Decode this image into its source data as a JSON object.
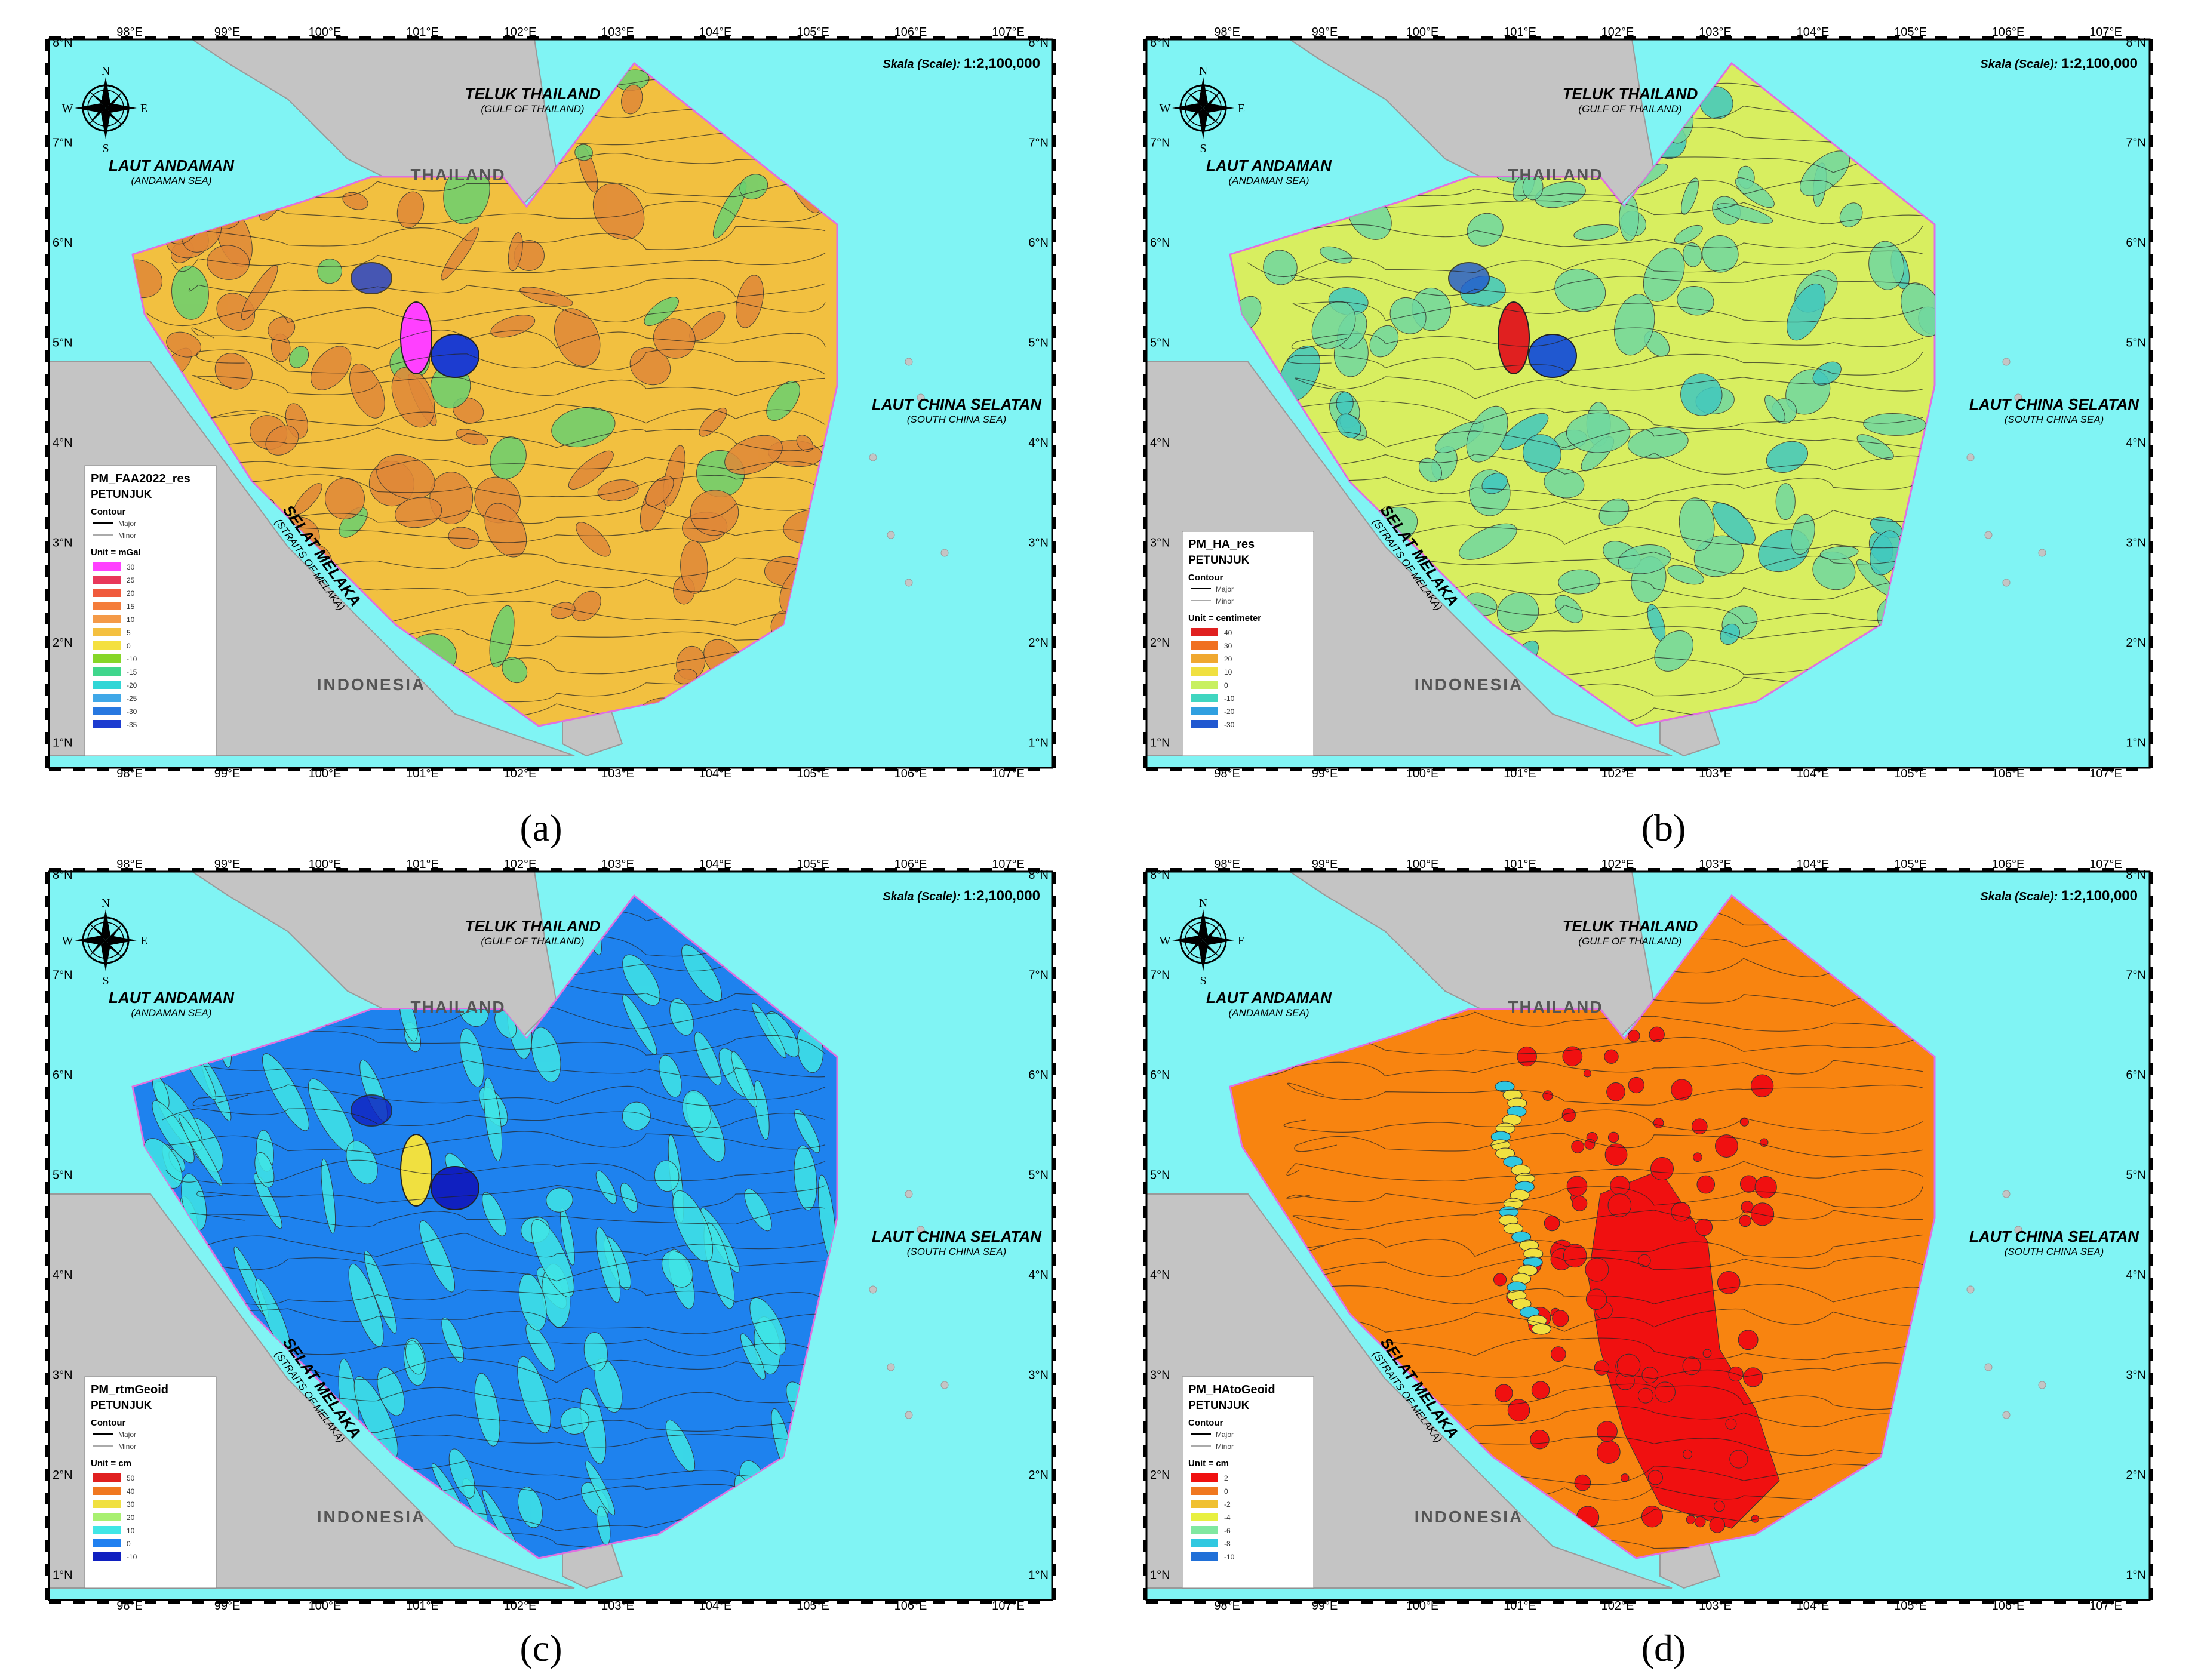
{
  "panels": [
    {
      "caption": "(a)",
      "legend": {
        "title": "PM_FAA2022_res",
        "subtitle": "PETUNJUK",
        "contour": "Contour",
        "major": "Major",
        "minor": "Minor",
        "unit": "Unit = mGal",
        "classes": [
          "30",
          "25",
          "20",
          "15",
          "10",
          "5",
          "0",
          "-10",
          "-15",
          "-20",
          "-25",
          "-30",
          "-35"
        ],
        "colors": [
          "#ff40ff",
          "#e8385a",
          "#f05a3c",
          "#f47c3a",
          "#f49a48",
          "#f4c040",
          "#f4e040",
          "#86d628",
          "#40d68c",
          "#30d6d6",
          "#40a8e8",
          "#2878e0",
          "#1c3cd0"
        ]
      },
      "fill": "#f2c040",
      "pattern": "#e08838",
      "patches": "#6ad070",
      "anomaly_hi": "#ff40ff",
      "anomaly_lo": "#1c3cd0"
    },
    {
      "caption": "(b)",
      "legend": {
        "title": "PM_HA_res",
        "subtitle": "PETUNJUK",
        "contour": "Contour",
        "major": "Major",
        "minor": "Minor",
        "unit": "Unit = centimeter",
        "classes": [
          "40",
          "30",
          "20",
          "10",
          "0",
          "-10",
          "-20",
          "-30"
        ],
        "colors": [
          "#e02020",
          "#f07020",
          "#f0a830",
          "#f0e040",
          "#c8f060",
          "#40d6c0",
          "#30a0e0",
          "#2058d0"
        ]
      },
      "fill": "#d8ee60",
      "pattern": "#70d8a0",
      "patches": "#40c8c0",
      "anomaly_hi": "#e02020",
      "anomaly_lo": "#2058d0"
    },
    {
      "caption": "(c)",
      "legend": {
        "title": "PM_rtmGeoid",
        "subtitle": "PETUNJUK",
        "contour": "Contour",
        "major": "Major",
        "minor": "Minor",
        "unit": "Unit = cm",
        "classes": [
          "50",
          "40",
          "30",
          "20",
          "10",
          "0",
          "-10"
        ],
        "colors": [
          "#e02020",
          "#f07820",
          "#f0e040",
          "#a8f070",
          "#40e6e6",
          "#2080f0",
          "#1020c0"
        ]
      },
      "fill": "#1e82ee",
      "pattern": "#40e6e6",
      "patches": "#40e6e6",
      "anomaly_hi": "#f0e040",
      "anomaly_lo": "#1020c0"
    },
    {
      "caption": "(d)",
      "legend": {
        "title": "PM_HAtoGeoid",
        "subtitle": "PETUNJUK",
        "contour": "Contour",
        "major": "Major",
        "minor": "Minor",
        "unit": "Unit = cm",
        "classes": [
          "2",
          "0",
          "-2",
          "-4",
          "-6",
          "-8",
          "-10"
        ],
        "colors": [
          "#f01010",
          "#f07820",
          "#f0c030",
          "#e8f040",
          "#80e8a0",
          "#30c8e0",
          "#2070d8"
        ]
      },
      "fill": "#f88410",
      "pattern": "#f01010",
      "patches": "#f01010",
      "anomaly_hi": "#f0e040",
      "anomaly_lo": "#30c8e0"
    }
  ],
  "map": {
    "scale_label": "Skala (Scale):",
    "scale_value": "1:2,100,000",
    "compass": {
      "n": "N",
      "s": "S",
      "e": "E",
      "w": "W"
    },
    "lon_ticks": [
      "98°E",
      "99°E",
      "100°E",
      "101°E",
      "102°E",
      "103°E",
      "104°E",
      "105°E",
      "106°E",
      "107°E"
    ],
    "lat_ticks": [
      "8°N",
      "7°N",
      "6°N",
      "5°N",
      "4°N",
      "3°N",
      "2°N",
      "1°N"
    ],
    "labels": {
      "teluk": "TELUK THAILAND",
      "teluk_en": "(GULF OF THAILAND)",
      "andaman": "LAUT ANDAMAN",
      "andaman_en": "(ANDAMAN SEA)",
      "thailand": "THAILAND",
      "lcs": "LAUT CHINA SELATAN",
      "lcs_en": "(SOUTH CHINA SEA)",
      "selat": "SELAT MELAKA",
      "selat_en": "(STRAITS OF MELAKA)",
      "indonesia": "INDONESIA"
    },
    "colors": {
      "sea": "#80f4f4",
      "land": "#c4c4c4",
      "frame": "#000000",
      "boundary": "#e070e0"
    }
  }
}
